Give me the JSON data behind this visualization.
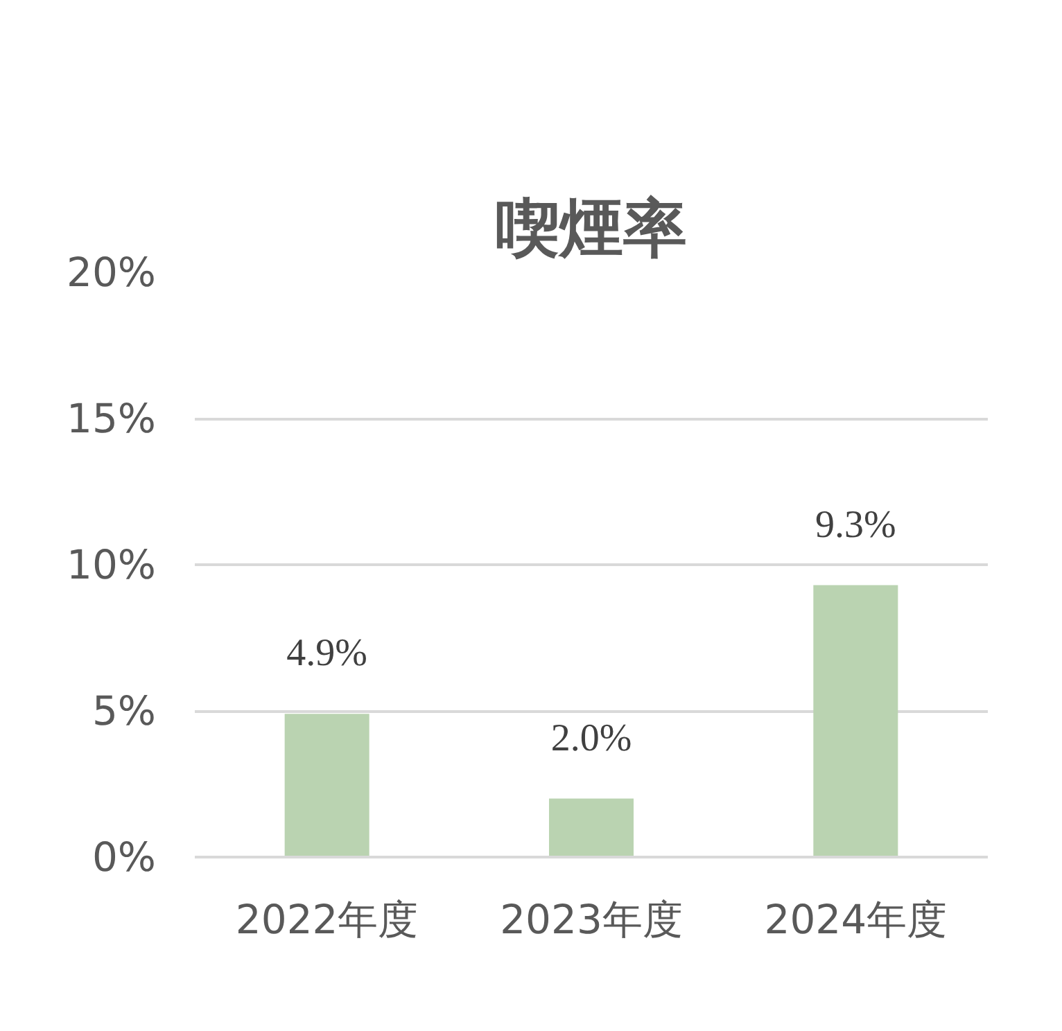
{
  "chart_data": {
    "type": "bar",
    "title": "喫煙率",
    "categories": [
      "2022年度",
      "2023年度",
      "2024年度"
    ],
    "values": [
      4.9,
      2.0,
      9.3
    ],
    "value_labels": [
      "4.9%",
      "2.0%",
      "9.3%"
    ],
    "color": "#bad3b1",
    "ylim": [
      0,
      20
    ],
    "yticks": [
      {
        "value": 0,
        "label": "0%"
      },
      {
        "value": 5,
        "label": "5%"
      },
      {
        "value": 10,
        "label": "10%"
      },
      {
        "value": 15,
        "label": "15%"
      },
      {
        "value": 20,
        "label": "20%"
      }
    ],
    "grid": "y"
  }
}
